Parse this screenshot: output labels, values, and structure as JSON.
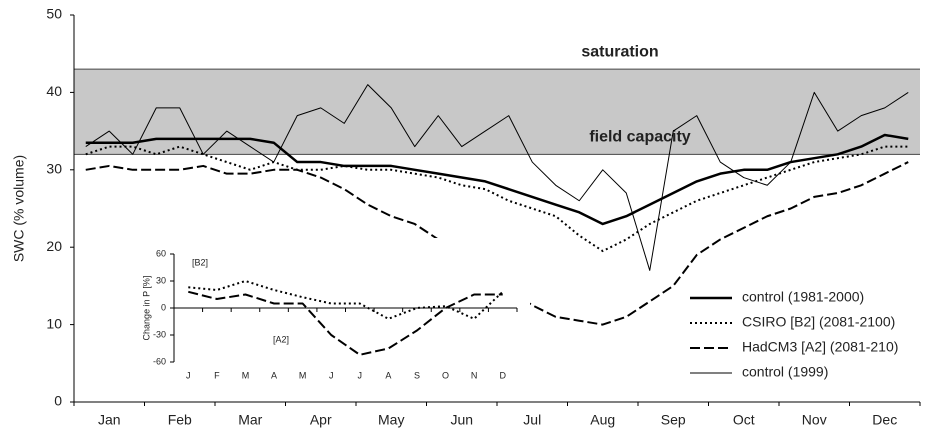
{
  "chart_data": [
    {
      "type": "line",
      "ylabel": "SWC (% volume)",
      "categories": [
        null,
        "Jan",
        null,
        null,
        "Feb",
        null,
        null,
        "Mar",
        null,
        null,
        "Apr",
        null,
        null,
        "May",
        null,
        null,
        "Jun",
        null,
        null,
        "Jul",
        null,
        null,
        "Aug",
        null,
        null,
        "Sep",
        null,
        null,
        "Oct",
        null,
        null,
        "Nov",
        null,
        null,
        "Dec",
        null
      ],
      "ylim": [
        0,
        50
      ],
      "yticks": [
        0,
        10,
        20,
        30,
        40,
        50
      ],
      "reference_lines": [
        {
          "value": 43,
          "label": "saturation"
        },
        {
          "value": 32,
          "label": "field capacity"
        }
      ],
      "shade": "#c8c8c8",
      "legend": "lower right",
      "series": [
        {
          "name": "control (1981-2000)",
          "color": "#000000",
          "style": "thick",
          "values": [
            33.5,
            33.5,
            33.5,
            34,
            34,
            34,
            34,
            34,
            33.5,
            31,
            31,
            30.5,
            30.5,
            30.5,
            30,
            29.5,
            29,
            28.5,
            27.5,
            26.5,
            25.5,
            24.5,
            23,
            24,
            25.5,
            27,
            28.5,
            29.5,
            30,
            30,
            31,
            31.5,
            32,
            33,
            34.5,
            34
          ]
        },
        {
          "name": "CSIRO [B2] (2081-2100)",
          "color": "#000000",
          "style": "dotted",
          "values": [
            32,
            33,
            33,
            32,
            33,
            32,
            31,
            30,
            31,
            30,
            30,
            30.5,
            30,
            30,
            29.5,
            29,
            28,
            27.5,
            26,
            25,
            24,
            21.5,
            19.5,
            21,
            23,
            24.5,
            26,
            27,
            28,
            29,
            30,
            31,
            31.5,
            32,
            33,
            33
          ]
        },
        {
          "name": "HadCM3 [A2] (2081-210)",
          "color": "#000000",
          "style": "dashed",
          "values": [
            30,
            30.5,
            30,
            30,
            30,
            30.5,
            29.5,
            29.5,
            30,
            30,
            29,
            27.5,
            25.5,
            24,
            23,
            21,
            19,
            17.5,
            14.5,
            12.5,
            11,
            10.5,
            10,
            11,
            13,
            15,
            19,
            21,
            22.5,
            24,
            25,
            26.5,
            27,
            28,
            29.5,
            31
          ]
        },
        {
          "name": "control (1999)",
          "color": "#000000",
          "style": "thin",
          "values": [
            33,
            35,
            32,
            38,
            38,
            32,
            35,
            33,
            31,
            37,
            38,
            36,
            41,
            38,
            33,
            37,
            33,
            35,
            37,
            31,
            28,
            26,
            30,
            27,
            17,
            35,
            37,
            31,
            29,
            28,
            31,
            40,
            35,
            37,
            38,
            40
          ]
        }
      ]
    },
    {
      "type": "line",
      "ylabel": "Change in P [%]",
      "categories": [
        "J",
        "F",
        "M",
        "A",
        "M",
        "J",
        "J",
        "A",
        "S",
        "O",
        "N",
        "D"
      ],
      "ylim": [
        -60,
        60
      ],
      "yticks": [
        -60,
        -30,
        0,
        30,
        60
      ],
      "series": [
        {
          "name": "[B2]",
          "color": "#000000",
          "style": "dotted",
          "values": [
            23,
            20,
            30,
            20,
            12,
            5,
            5,
            -12,
            0,
            2,
            -12,
            18
          ]
        },
        {
          "name": "[A2]",
          "color": "#000000",
          "style": "dashed",
          "values": [
            18,
            10,
            15,
            5,
            5,
            -30,
            -52,
            -45,
            -25,
            0,
            15,
            15
          ]
        }
      ]
    }
  ]
}
